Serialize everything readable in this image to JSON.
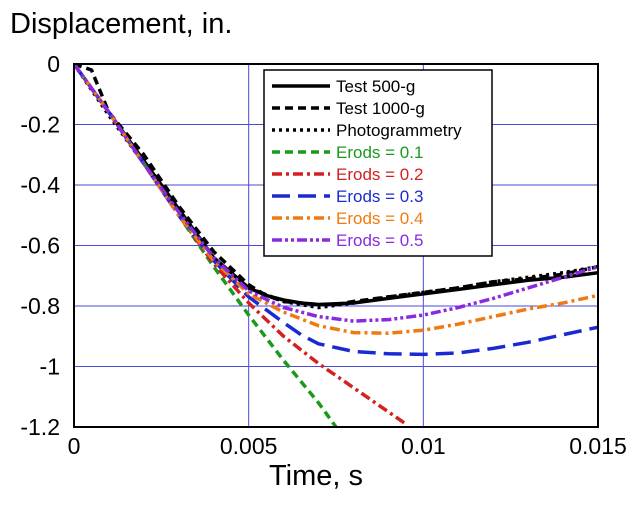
{
  "chart_data": {
    "type": "line",
    "title": "",
    "xlabel": "Time, s",
    "ylabel": "Displacement, in.",
    "xlim": [
      0,
      0.015
    ],
    "ylim": [
      -1.2,
      0
    ],
    "xticks": [
      0,
      0.005,
      0.01,
      0.015
    ],
    "xtick_labels": [
      "0",
      "0.005",
      "0.01",
      "0.015"
    ],
    "yticks": [
      0,
      -0.2,
      -0.4,
      -0.6,
      -0.8,
      -1,
      -1.2
    ],
    "ytick_labels": [
      "0",
      "-0.2",
      "-0.4",
      "-0.6",
      "-0.8",
      "-1",
      "-1.2"
    ],
    "grid": true,
    "legend_position": "top-right",
    "series": [
      {
        "name": "Test 500-g",
        "color": "#000000",
        "dash": "solid",
        "x": [
          0,
          0.001,
          0.002,
          0.003,
          0.004,
          0.005,
          0.0055,
          0.006,
          0.0065,
          0.007,
          0.008,
          0.009,
          0.01,
          0.011,
          0.012,
          0.013,
          0.014,
          0.015
        ],
        "y": [
          0,
          -0.16,
          -0.32,
          -0.48,
          -0.64,
          -0.74,
          -0.765,
          -0.78,
          -0.79,
          -0.795,
          -0.79,
          -0.775,
          -0.76,
          -0.745,
          -0.73,
          -0.715,
          -0.705,
          -0.69
        ]
      },
      {
        "name": "Test 1000-g",
        "color": "#000000",
        "dash": "dash",
        "x": [
          0,
          0.0005,
          0.001,
          0.002,
          0.003,
          0.004,
          0.005,
          0.0055,
          0.006,
          0.0065,
          0.007,
          0.0075,
          0.008,
          0.009,
          0.01,
          0.011,
          0.012,
          0.013,
          0.014,
          0.015
        ],
        "y": [
          0,
          -0.02,
          -0.16,
          -0.3,
          -0.47,
          -0.62,
          -0.73,
          -0.765,
          -0.785,
          -0.79,
          -0.795,
          -0.795,
          -0.785,
          -0.77,
          -0.755,
          -0.74,
          -0.72,
          -0.71,
          -0.695,
          -0.67
        ]
      },
      {
        "name": "Photogrammetry",
        "color": "#000000",
        "dash": "dot",
        "x": [
          0,
          0.001,
          0.002,
          0.003,
          0.004,
          0.005,
          0.006,
          0.007,
          0.008,
          0.009,
          0.01,
          0.011,
          0.012,
          0.013,
          0.014,
          0.015
        ],
        "y": [
          0,
          -0.17,
          -0.33,
          -0.49,
          -0.64,
          -0.74,
          -0.785,
          -0.805,
          -0.79,
          -0.77,
          -0.755,
          -0.74,
          -0.72,
          -0.705,
          -0.69,
          -0.67
        ]
      },
      {
        "name": "Erods = 0.1",
        "color": "#1a9a1a",
        "dash": "dash",
        "x": [
          0,
          0.001,
          0.002,
          0.003,
          0.004,
          0.005,
          0.006,
          0.007,
          0.0075
        ],
        "y": [
          0,
          -0.16,
          -0.33,
          -0.5,
          -0.67,
          -0.83,
          -0.98,
          -1.12,
          -1.2
        ]
      },
      {
        "name": "Erods = 0.2",
        "color": "#d42020",
        "dash": "dashdot",
        "x": [
          0,
          0.001,
          0.002,
          0.003,
          0.004,
          0.005,
          0.006,
          0.007,
          0.008,
          0.009,
          0.0095
        ],
        "y": [
          0,
          -0.16,
          -0.33,
          -0.5,
          -0.66,
          -0.79,
          -0.9,
          -0.99,
          -1.07,
          -1.15,
          -1.19
        ]
      },
      {
        "name": "Erods = 0.3",
        "color": "#1a2ad0",
        "dash": "longdash",
        "x": [
          0,
          0.001,
          0.002,
          0.003,
          0.004,
          0.005,
          0.006,
          0.0065,
          0.007,
          0.008,
          0.009,
          0.01,
          0.011,
          0.012,
          0.013,
          0.014,
          0.015
        ],
        "y": [
          0,
          -0.16,
          -0.33,
          -0.5,
          -0.65,
          -0.77,
          -0.855,
          -0.895,
          -0.925,
          -0.95,
          -0.958,
          -0.96,
          -0.955,
          -0.94,
          -0.92,
          -0.895,
          -0.87
        ]
      },
      {
        "name": "Erods = 0.4",
        "color": "#f07a10",
        "dash": "dashdot",
        "x": [
          0,
          0.001,
          0.002,
          0.003,
          0.004,
          0.005,
          0.006,
          0.007,
          0.008,
          0.009,
          0.01,
          0.011,
          0.012,
          0.013,
          0.014,
          0.015
        ],
        "y": [
          0,
          -0.16,
          -0.33,
          -0.5,
          -0.65,
          -0.76,
          -0.82,
          -0.865,
          -0.888,
          -0.89,
          -0.88,
          -0.86,
          -0.835,
          -0.81,
          -0.79,
          -0.765
        ]
      },
      {
        "name": "Erods = 0.5",
        "color": "#8a2ae0",
        "dash": "dashdotdot",
        "x": [
          0,
          0.001,
          0.002,
          0.003,
          0.004,
          0.005,
          0.006,
          0.007,
          0.008,
          0.009,
          0.01,
          0.011,
          0.012,
          0.013,
          0.014,
          0.015
        ],
        "y": [
          0,
          -0.16,
          -0.33,
          -0.49,
          -0.64,
          -0.75,
          -0.805,
          -0.835,
          -0.85,
          -0.845,
          -0.83,
          -0.805,
          -0.775,
          -0.74,
          -0.705,
          -0.67
        ]
      }
    ]
  }
}
